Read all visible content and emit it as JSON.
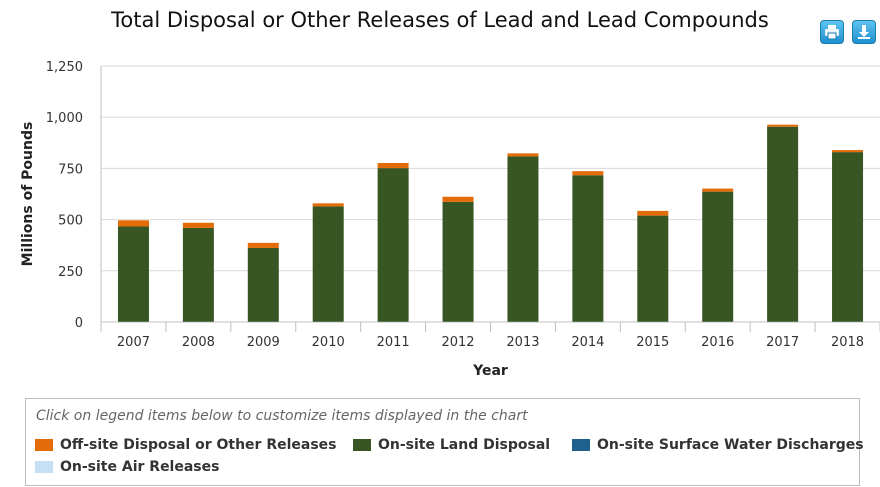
{
  "title": "Total Disposal or Other Releases of Lead and Lead Compounds",
  "toolbar": {
    "print_icon": "printer-icon",
    "download_icon": "download-icon"
  },
  "colors": {
    "offsite": "#e36c09",
    "land": "#375623",
    "water": "#1f618d",
    "air": "#c5e0f5",
    "grid": "#d9d9d9",
    "axis": "#c0c0c0"
  },
  "legend": {
    "hint": "Click on legend items below to customize items displayed in the chart",
    "items": [
      {
        "label": "Off-site Disposal or Other Releases",
        "color": "#e36c09"
      },
      {
        "label": "On-site Land Disposal",
        "color": "#375623"
      },
      {
        "label": "On-site Surface Water Discharges",
        "color": "#1f618d"
      },
      {
        "label": "On-site Air Releases",
        "color": "#c5e0f5"
      }
    ]
  },
  "chart_data": {
    "type": "bar",
    "stacked": true,
    "xlabel": "Year",
    "ylabel": "Millions of Pounds",
    "ylim": [
      0,
      1250
    ],
    "yticks": [
      0,
      250,
      500,
      750,
      1000,
      1250
    ],
    "ytick_labels": [
      "0",
      "250",
      "500",
      "750",
      "1,000",
      "1,250"
    ],
    "categories": [
      "2007",
      "2008",
      "2009",
      "2010",
      "2011",
      "2012",
      "2013",
      "2014",
      "2015",
      "2016",
      "2017",
      "2018"
    ],
    "series": [
      {
        "name": "On-site Air Releases",
        "color": "#c5e0f5",
        "values": [
          1,
          1,
          1,
          1,
          1,
          1,
          1,
          1,
          1,
          1,
          1,
          1
        ]
      },
      {
        "name": "On-site Surface Water Discharges",
        "color": "#1f618d",
        "values": [
          0.5,
          0.5,
          0.5,
          0.5,
          0.5,
          0.5,
          0.5,
          0.5,
          0.5,
          0.5,
          0.5,
          0.5
        ]
      },
      {
        "name": "On-site Land Disposal",
        "color": "#375623",
        "values": [
          465,
          458,
          360,
          563,
          750,
          585,
          807,
          715,
          518,
          635,
          952,
          828
        ]
      },
      {
        "name": "Off-site Disposal or Other Releases",
        "color": "#e36c09",
        "values": [
          30,
          25,
          25,
          15,
          25,
          25,
          15,
          20,
          23,
          15,
          10,
          10
        ]
      }
    ],
    "grid": true,
    "legend_position": "bottom"
  }
}
